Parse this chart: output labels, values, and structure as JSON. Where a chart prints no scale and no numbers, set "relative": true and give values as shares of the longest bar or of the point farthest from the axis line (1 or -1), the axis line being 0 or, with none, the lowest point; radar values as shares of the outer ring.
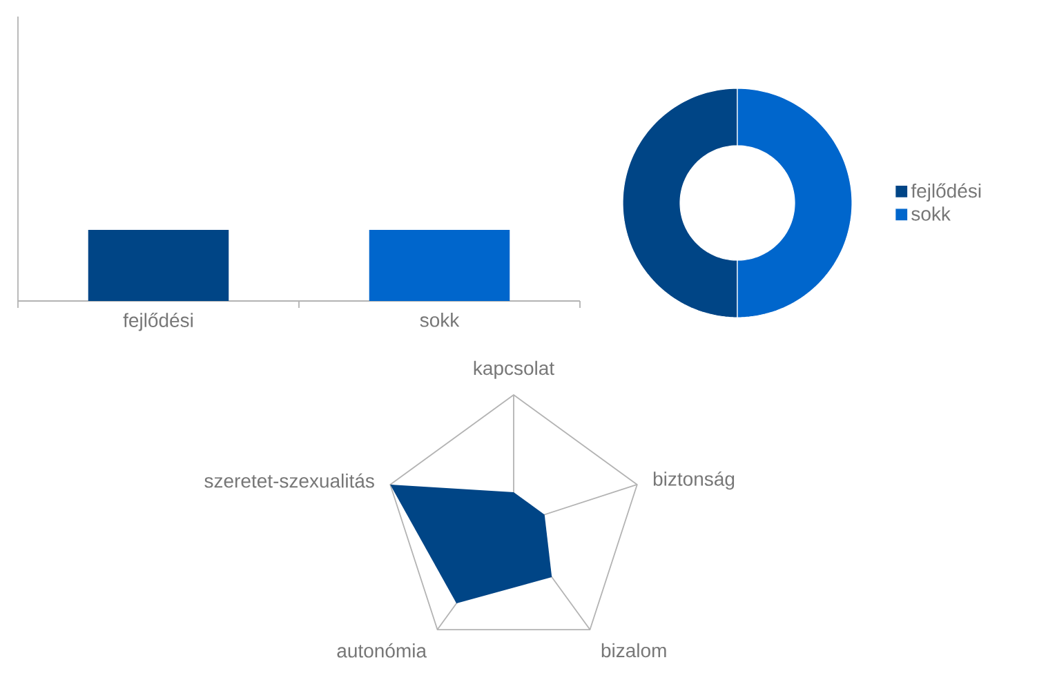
{
  "chart_data": [
    {
      "type": "bar",
      "categories": [
        "fejlődési",
        "sokk"
      ],
      "values": [
        1,
        1
      ],
      "colors": [
        "#004586",
        "#0066cc"
      ],
      "relative": true
    },
    {
      "type": "donut",
      "categories": [
        "fejlődési",
        "sokk"
      ],
      "values": [
        50,
        50
      ],
      "colors": [
        "#004586",
        "#0066cc"
      ],
      "legend": "right"
    },
    {
      "type": "radar",
      "categories": [
        "kapcsolat",
        "biztonság",
        "bizalom",
        "autonómia",
        "szeretet-szexualitás"
      ],
      "series": [
        {
          "color": "#004586",
          "values": [
            0.25,
            0.25,
            0.5,
            0.75,
            1
          ]
        }
      ],
      "relative": true,
      "grid": true
    }
  ]
}
